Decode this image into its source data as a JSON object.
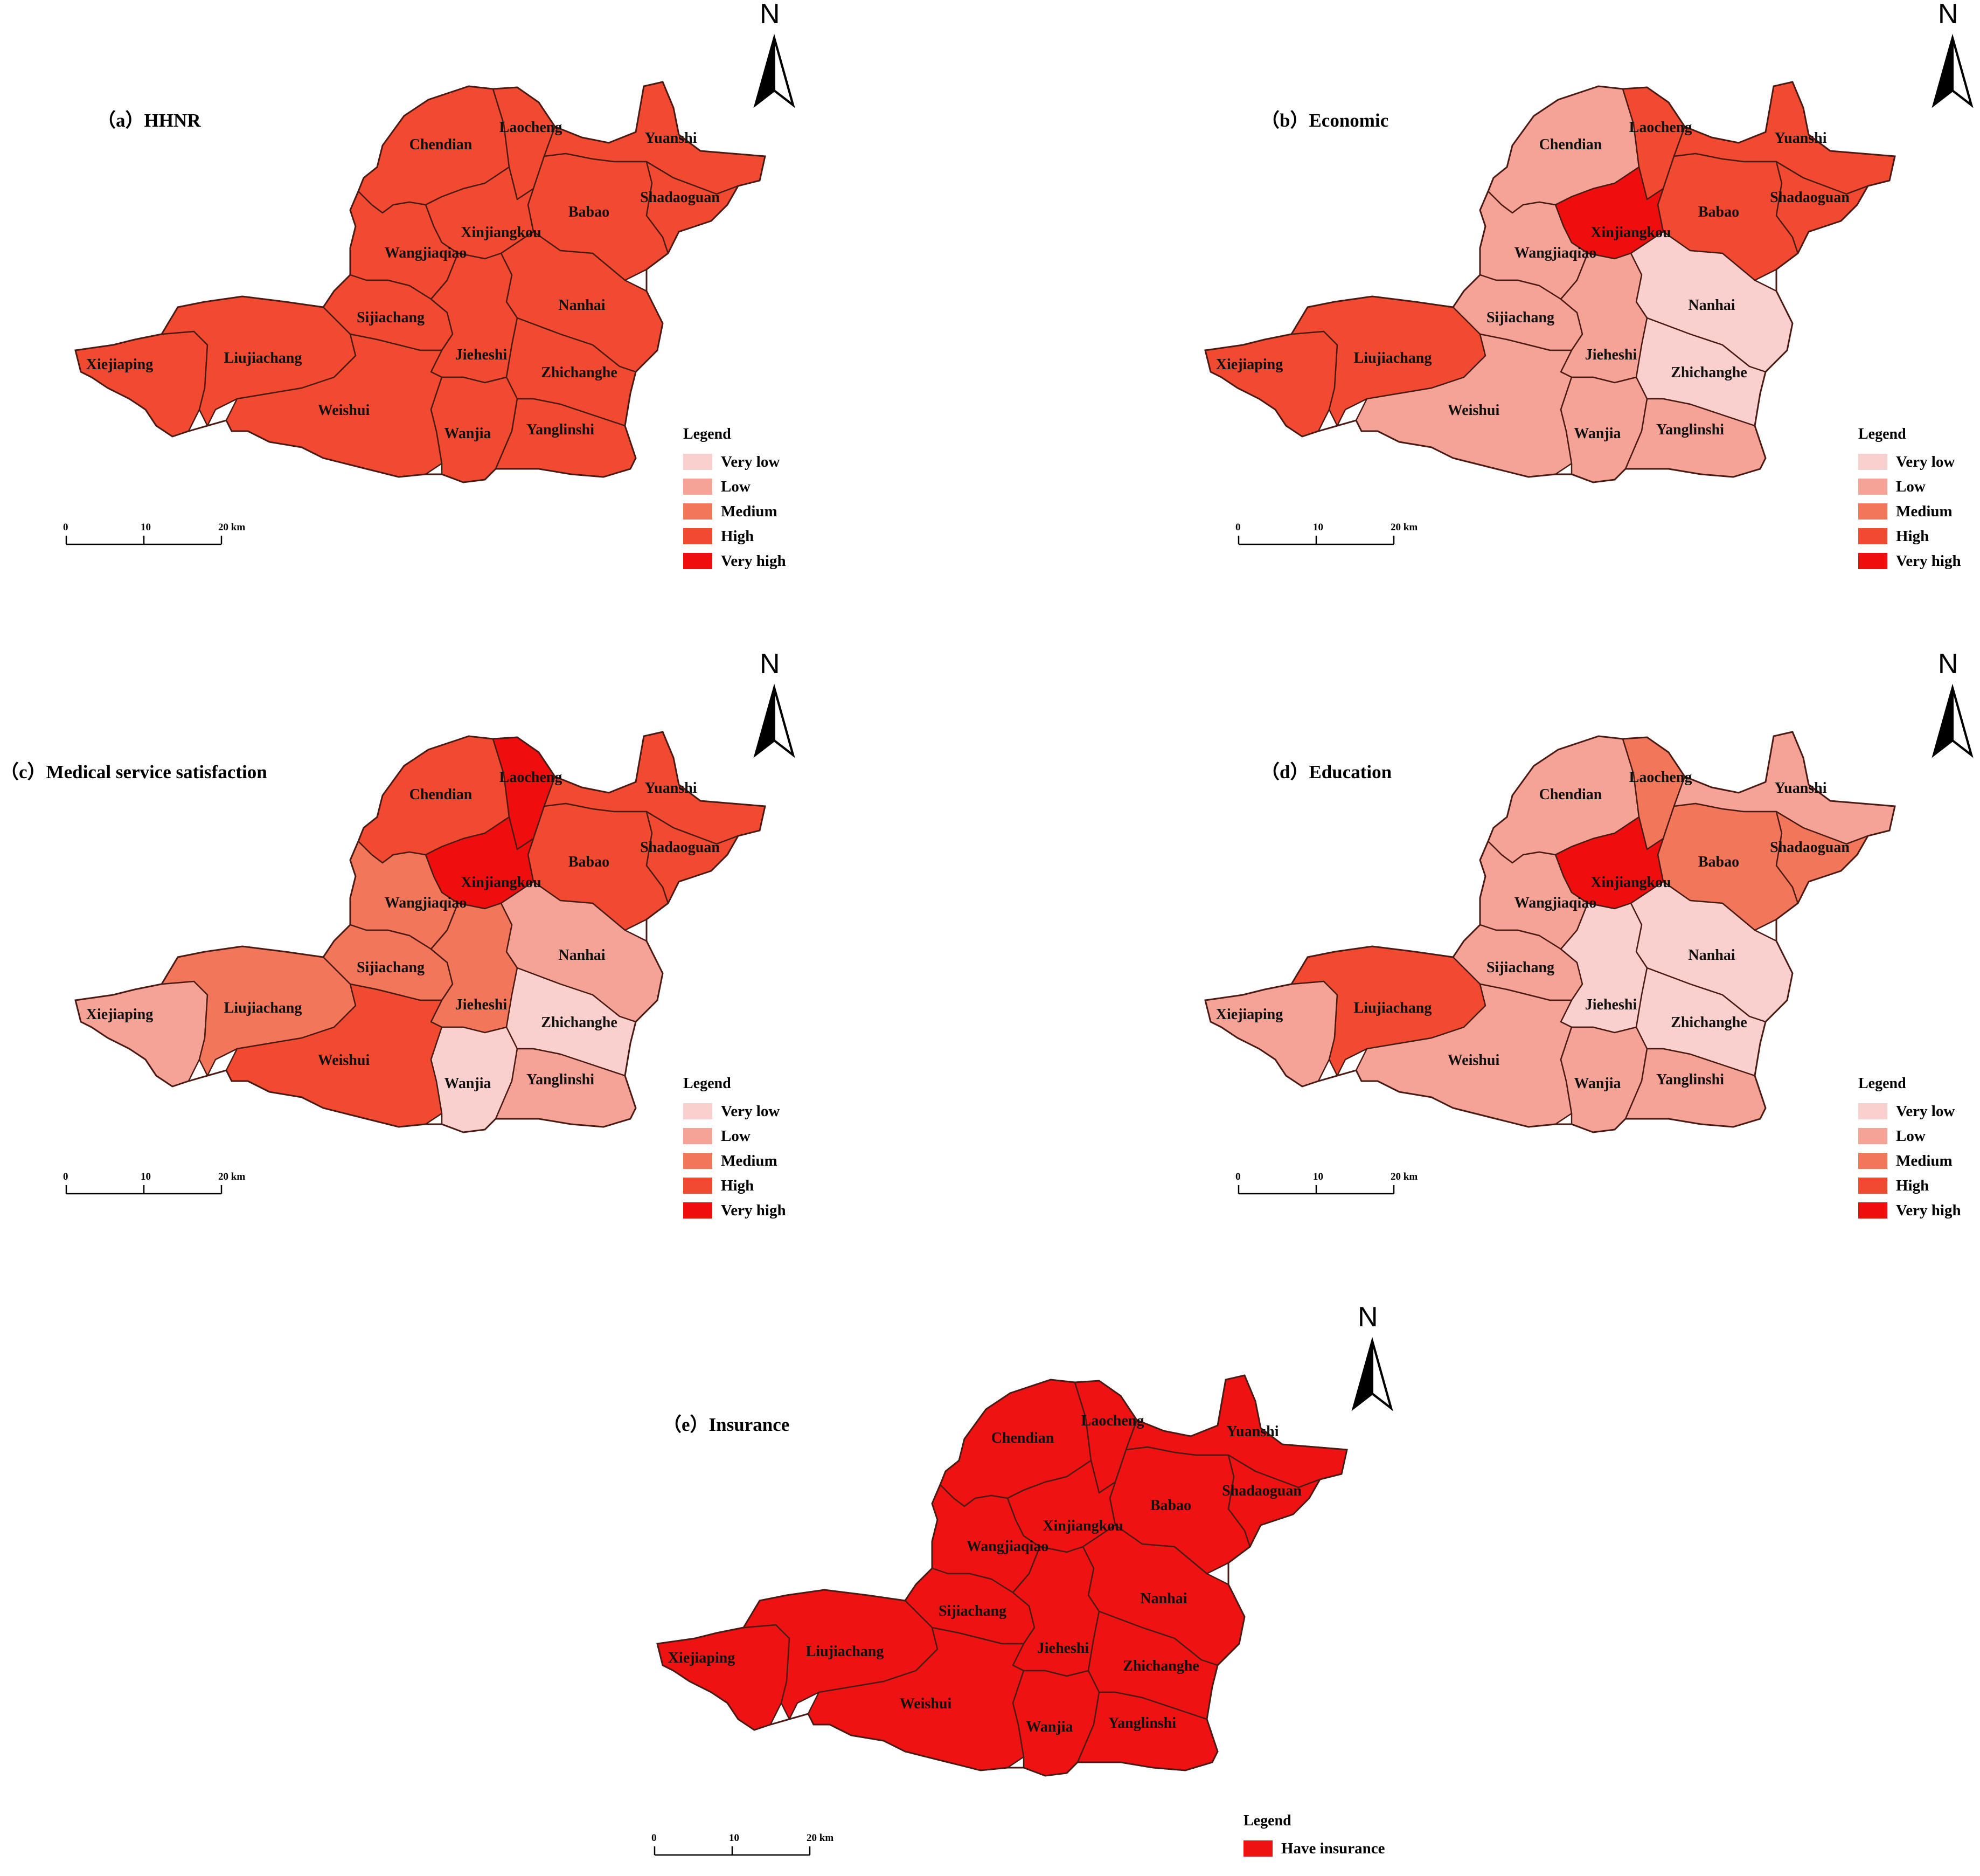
{
  "colors": {
    "very_low": "#f9d0cd",
    "low": "#f4a396",
    "medium": "#f27659",
    "high": "#f24a30",
    "very_high": "#ee0e0e",
    "insurance": "#ee1212",
    "border": "#4a1a14"
  },
  "towns": [
    "Chendian",
    "Laocheng",
    "Yuanshi",
    "Babao",
    "Shadaoguan",
    "Xinjiangkou",
    "Wangjiaqiao",
    "Nanhai",
    "Sijiachang",
    "Jieheshi",
    "Zhichanghe",
    "Xiejiaping",
    "Liujiachang",
    "Weishui",
    "Wanjia",
    "Yanglinshi"
  ],
  "legend": {
    "title": "Legend",
    "levels": [
      "Very low",
      "Low",
      "Medium",
      "High",
      "Very high"
    ],
    "insurance_label": "Have insurance"
  },
  "north_label": "N",
  "scale": {
    "ticks": [
      "0",
      "10",
      "20 km"
    ]
  },
  "panels": [
    {
      "title": "（a）HHNR",
      "levels": {
        "Chendian": "high",
        "Laocheng": "high",
        "Yuanshi": "high",
        "Babao": "high",
        "Shadaoguan": "high",
        "Xinjiangkou": "high",
        "Wangjiaqiao": "high",
        "Nanhai": "high",
        "Sijiachang": "high",
        "Jieheshi": "high",
        "Zhichanghe": "high",
        "Xiejiaping": "high",
        "Liujiachang": "high",
        "Weishui": "high",
        "Wanjia": "high",
        "Yanglinshi": "high"
      }
    },
    {
      "title": "（b）Economic",
      "levels": {
        "Chendian": "low",
        "Laocheng": "high",
        "Yuanshi": "high",
        "Babao": "high",
        "Shadaoguan": "high",
        "Xinjiangkou": "very_high",
        "Wangjiaqiao": "low",
        "Nanhai": "very_low",
        "Sijiachang": "low",
        "Jieheshi": "low",
        "Zhichanghe": "very_low",
        "Xiejiaping": "high",
        "Liujiachang": "high",
        "Weishui": "low",
        "Wanjia": "low",
        "Yanglinshi": "low"
      }
    },
    {
      "title": "（c）Medical service satisfaction",
      "levels": {
        "Chendian": "high",
        "Laocheng": "very_high",
        "Yuanshi": "high",
        "Babao": "high",
        "Shadaoguan": "high",
        "Xinjiangkou": "very_high",
        "Wangjiaqiao": "medium",
        "Nanhai": "low",
        "Sijiachang": "medium",
        "Jieheshi": "medium",
        "Zhichanghe": "very_low",
        "Xiejiaping": "low",
        "Liujiachang": "medium",
        "Weishui": "high",
        "Wanjia": "very_low",
        "Yanglinshi": "low"
      }
    },
    {
      "title": "（d）Education",
      "levels": {
        "Chendian": "low",
        "Laocheng": "medium",
        "Yuanshi": "low",
        "Babao": "medium",
        "Shadaoguan": "medium",
        "Xinjiangkou": "very_high",
        "Wangjiaqiao": "low",
        "Nanhai": "very_low",
        "Sijiachang": "low",
        "Jieheshi": "very_low",
        "Zhichanghe": "very_low",
        "Xiejiaping": "low",
        "Liujiachang": "high",
        "Weishui": "low",
        "Wanjia": "low",
        "Yanglinshi": "low"
      }
    },
    {
      "title": "（e）Insurance",
      "levels": {
        "Chendian": "insurance",
        "Laocheng": "insurance",
        "Yuanshi": "insurance",
        "Babao": "insurance",
        "Shadaoguan": "insurance",
        "Xinjiangkou": "insurance",
        "Wangjiaqiao": "insurance",
        "Nanhai": "insurance",
        "Sijiachang": "insurance",
        "Jieheshi": "insurance",
        "Zhichanghe": "insurance",
        "Xiejiaping": "insurance",
        "Liujiachang": "insurance",
        "Weishui": "insurance",
        "Wanjia": "insurance",
        "Yanglinshi": "insurance"
      }
    }
  ]
}
